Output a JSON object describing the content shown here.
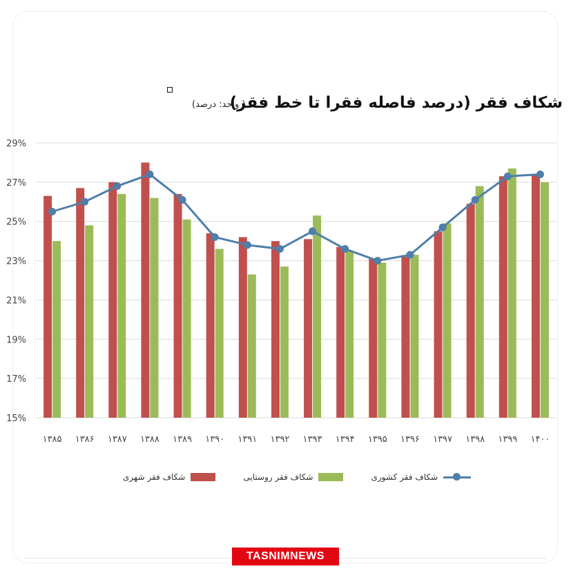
{
  "header": {
    "title": "شکاف فقر (درصد فاصله فقرا تا خط فقر)",
    "unit_note": "( واحد: درصد)"
  },
  "brand": {
    "label": "TASNIMNEWS",
    "color": "#e30613"
  },
  "colors": {
    "urban": "#c0504d",
    "rural": "#9bbb59",
    "national": "#4f7eaa",
    "grid": "#d9d9d9"
  },
  "chart_data": {
    "type": "bar",
    "categories": [
      "۱۳۸۵",
      "۱۳۸۶",
      "۱۳۸۷",
      "۱۳۸۸",
      "۱۳۸۹",
      "۱۳۹۰",
      "۱۳۹۱",
      "۱۳۹۲",
      "۱۳۹۳",
      "۱۳۹۴",
      "۱۳۹۵",
      "۱۳۹۶",
      "۱۳۹۷",
      "۱۳۹۸",
      "۱۳۹۹",
      "۱۴۰۰"
    ],
    "y_ticks": [
      "15%",
      "17%",
      "19%",
      "21%",
      "23%",
      "25%",
      "27%",
      "29%"
    ],
    "ylim": [
      15,
      29
    ],
    "series": [
      {
        "name": "شکاف فقر شهری",
        "type": "bar",
        "values": [
          26.3,
          26.7,
          27.0,
          28.0,
          26.4,
          24.4,
          24.2,
          24.0,
          24.1,
          23.7,
          23.1,
          23.2,
          24.5,
          25.9,
          27.3,
          27.4
        ]
      },
      {
        "name": "شکاف فقر روستایی",
        "type": "bar",
        "values": [
          24.0,
          24.8,
          26.4,
          26.2,
          25.1,
          23.6,
          22.3,
          22.7,
          25.3,
          23.5,
          22.9,
          23.3,
          24.9,
          26.8,
          27.7,
          27.0
        ]
      },
      {
        "name": "شکاف فقر کشوری",
        "type": "line",
        "values": [
          25.5,
          26.0,
          26.8,
          27.4,
          26.1,
          24.2,
          23.8,
          23.6,
          24.5,
          23.6,
          23.0,
          23.3,
          24.7,
          26.1,
          27.3,
          27.4
        ]
      }
    ],
    "grid": true,
    "legend_position": "bottom"
  }
}
